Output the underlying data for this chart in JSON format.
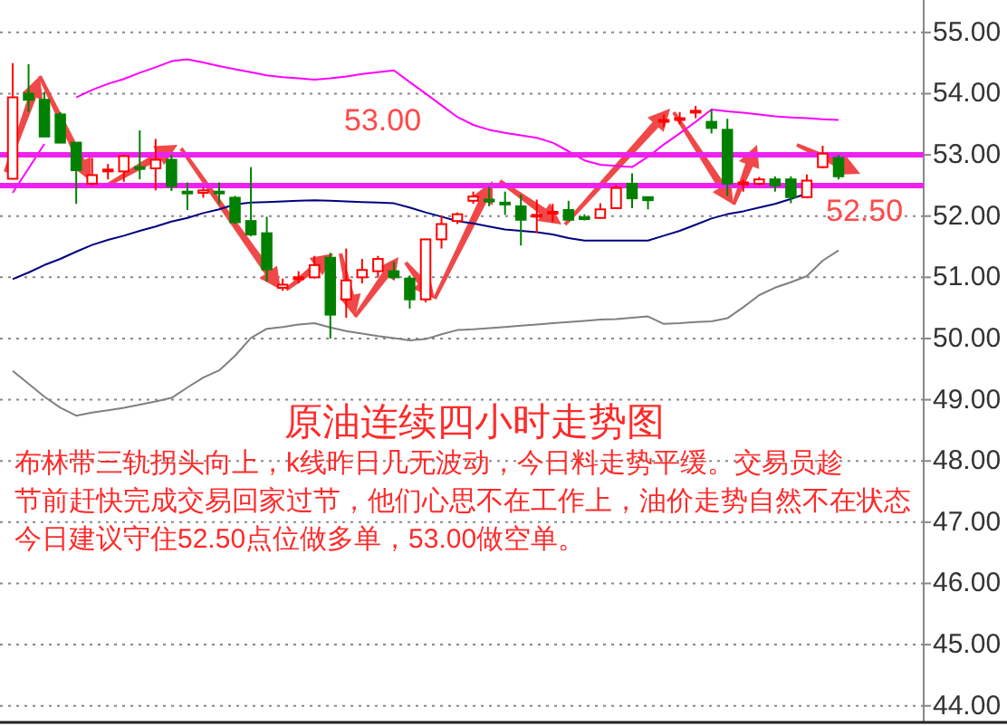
{
  "chart_data": {
    "type": "candlestick",
    "title": "原油连续四小时走势图",
    "annotations": [
      "布林带三轨拐头向上，k线昨日几无波动，今日料走势平缓。交易员趁节前赶快完成交易回家过节，他们心思不在工作上，油价走势自然不在状态",
      "今日建议守住52.50点位做多单，53.00做空单。"
    ],
    "categories": [
      null,
      null,
      null,
      null,
      null,
      null,
      null,
      null,
      null,
      null,
      null,
      null,
      null,
      null,
      null,
      null,
      null,
      null,
      null,
      null,
      null,
      null,
      null,
      null,
      null,
      null,
      null,
      null,
      null,
      null,
      null,
      null,
      null,
      null,
      null,
      null,
      null,
      null,
      null,
      null,
      null,
      null,
      null,
      null,
      null,
      null,
      null,
      null,
      null,
      null,
      null,
      null,
      null
    ],
    "ohlc": [
      [
        52.61,
        54.5,
        52.6,
        53.94
      ],
      [
        54.0,
        54.48,
        53.7,
        53.9
      ],
      [
        53.9,
        54.03,
        53.3,
        53.3
      ],
      [
        53.66,
        53.7,
        53.2,
        53.2
      ],
      [
        53.2,
        53.2,
        52.2,
        52.75
      ],
      [
        52.53,
        52.95,
        52.5,
        52.67
      ],
      [
        52.74,
        52.85,
        52.6,
        52.76
      ],
      [
        52.73,
        53.0,
        52.56,
        52.98
      ],
      [
        52.8,
        53.4,
        52.6,
        52.78
      ],
      [
        52.78,
        53.26,
        52.42,
        52.92
      ],
      [
        52.92,
        53.0,
        52.41,
        52.49
      ],
      [
        52.4,
        52.55,
        52.1,
        52.38
      ],
      [
        52.38,
        52.46,
        52.3,
        52.42
      ],
      [
        52.4,
        52.55,
        52.2,
        52.38
      ],
      [
        52.3,
        52.33,
        51.87,
        51.9
      ],
      [
        51.92,
        52.8,
        51.67,
        51.7
      ],
      [
        51.72,
        51.99,
        50.93,
        51.13
      ],
      [
        50.83,
        50.98,
        50.78,
        50.88
      ],
      [
        50.98,
        51.1,
        50.9,
        51.0
      ],
      [
        51.0,
        51.35,
        50.98,
        51.2
      ],
      [
        51.32,
        51.4,
        50.0,
        50.39
      ],
      [
        50.64,
        51.47,
        50.34,
        50.95
      ],
      [
        51.0,
        51.3,
        50.9,
        51.12
      ],
      [
        51.1,
        51.35,
        51.0,
        51.3
      ],
      [
        51.1,
        51.25,
        50.97,
        51.0
      ],
      [
        50.98,
        51.03,
        50.49,
        50.64
      ],
      [
        50.64,
        51.62,
        50.59,
        51.62
      ],
      [
        51.62,
        52.01,
        51.47,
        51.87
      ],
      [
        51.92,
        52.06,
        51.87,
        52.03
      ],
      [
        52.25,
        52.4,
        52.2,
        52.32
      ],
      [
        52.27,
        52.48,
        52.16,
        52.26
      ],
      [
        52.22,
        52.4,
        52.02,
        52.2
      ],
      [
        52.16,
        52.35,
        51.52,
        51.94
      ],
      [
        52.0,
        52.27,
        51.73,
        52.02
      ],
      [
        52.05,
        52.2,
        51.9,
        52.07
      ],
      [
        52.1,
        52.25,
        51.92,
        51.94
      ],
      [
        51.98,
        52.03,
        51.93,
        51.97
      ],
      [
        51.97,
        52.21,
        51.96,
        52.11
      ],
      [
        52.13,
        52.51,
        52.13,
        52.46
      ],
      [
        52.53,
        52.7,
        52.13,
        52.29
      ],
      [
        52.31,
        52.31,
        52.11,
        52.26
      ],
      [
        53.55,
        53.66,
        53.45,
        53.57
      ],
      [
        53.58,
        53.7,
        53.5,
        53.6
      ],
      [
        53.7,
        53.8,
        53.6,
        53.72
      ],
      [
        53.54,
        53.74,
        53.35,
        53.44
      ],
      [
        53.41,
        53.59,
        52.33,
        52.53
      ],
      [
        52.52,
        52.6,
        52.4,
        52.55
      ],
      [
        52.53,
        52.64,
        52.5,
        52.6
      ],
      [
        52.6,
        52.65,
        52.4,
        52.5
      ],
      [
        52.6,
        52.65,
        52.21,
        52.31
      ],
      [
        52.31,
        52.68,
        52.29,
        52.58
      ],
      [
        52.8,
        53.15,
        52.78,
        53.02
      ],
      [
        52.95,
        53.0,
        52.6,
        52.65
      ]
    ],
    "colors": [
      "#ff0000",
      "#008000",
      "#008000",
      "#008000",
      "#008000",
      "#ff0000",
      "#ff0000",
      "#ff0000",
      "#008000",
      "#ff0000",
      "#008000",
      "#008000",
      "#ff0000",
      "#008000",
      "#008000",
      "#008000",
      "#008000",
      "#ff0000",
      "#ff0000",
      "#ff0000",
      "#008000",
      "#ff0000",
      "#ff0000",
      "#ff0000",
      "#008000",
      "#008000",
      "#ff0000",
      "#ff0000",
      "#ff0000",
      "#ff0000",
      "#008000",
      "#008000",
      "#008000",
      "#ff0000",
      "#ff0000",
      "#008000",
      "#008000",
      "#ff0000",
      "#ff0000",
      "#008000",
      "#008000",
      "#ff0000",
      "#ff0000",
      "#ff0000",
      "#008000",
      "#008000",
      "#ff0000",
      "#ff0000",
      "#008000",
      "#008000",
      "#ff0000",
      "#ff0000",
      "#008000"
    ],
    "series": [
      {
        "type": "line",
        "color": "#ff00ff",
        "values": [
          52.38,
          52.78,
          53.18,
          null,
          53.94,
          54.06,
          54.16,
          54.24,
          54.34,
          54.43,
          54.53,
          54.56,
          54.51,
          54.45,
          54.4,
          54.35,
          54.3,
          54.27,
          54.25,
          54.23,
          54.25,
          54.28,
          54.32,
          54.35,
          54.38,
          54.19,
          54.0,
          53.81,
          53.62,
          53.49,
          53.41,
          53.36,
          53.32,
          53.28,
          53.2,
          53.06,
          52.91,
          52.84,
          52.82,
          52.8,
          52.97,
          53.17,
          53.35,
          53.54,
          53.74,
          53.71,
          53.69,
          53.66,
          53.63,
          53.61,
          53.6,
          53.58,
          53.57
        ]
      },
      {
        "type": "line",
        "color": "#000080",
        "values": [
          50.97,
          51.08,
          51.2,
          51.3,
          51.42,
          51.53,
          51.61,
          51.68,
          51.76,
          51.83,
          51.91,
          51.97,
          52.05,
          52.11,
          52.19,
          52.22,
          52.23,
          52.24,
          52.25,
          52.26,
          52.25,
          52.24,
          52.23,
          52.22,
          52.21,
          52.14,
          52.06,
          51.99,
          51.92,
          51.88,
          51.83,
          51.78,
          51.76,
          51.74,
          51.7,
          51.64,
          51.6,
          51.6,
          51.6,
          51.6,
          51.6,
          51.68,
          51.76,
          51.86,
          51.96,
          52.03,
          52.08,
          52.14,
          52.2,
          52.28,
          52.37,
          null,
          null
        ]
      },
      {
        "type": "line",
        "color": "#808080",
        "values": [
          49.47,
          49.26,
          49.05,
          48.87,
          48.74,
          48.79,
          48.83,
          48.87,
          48.92,
          48.97,
          49.03,
          49.2,
          49.36,
          49.48,
          49.72,
          50.01,
          50.16,
          50.19,
          50.23,
          50.25,
          50.18,
          50.12,
          50.08,
          50.04,
          50.01,
          49.97,
          49.99,
          50.07,
          50.14,
          50.15,
          50.17,
          50.19,
          50.21,
          50.23,
          50.25,
          50.27,
          50.29,
          50.31,
          50.32,
          50.34,
          50.36,
          50.24,
          50.25,
          50.27,
          50.28,
          50.33,
          50.51,
          50.71,
          50.83,
          50.92,
          51.02,
          51.27,
          51.44
        ]
      }
    ],
    "ref_lines": [
      {
        "axis": "y",
        "value": 53.0,
        "label": "53.00",
        "color": "#ee22ee"
      },
      {
        "axis": "y",
        "value": 52.5,
        "label": "52.50",
        "color": "#ee22ee"
      }
    ],
    "ylim": [
      43.73,
      55.53
    ],
    "yticks": [
      {
        "value": 44,
        "label": "44.00"
      },
      {
        "value": 45,
        "label": "45.00"
      },
      {
        "value": 46,
        "label": "46.00"
      },
      {
        "value": 47,
        "label": "47.00"
      },
      {
        "value": 48,
        "label": "48.00"
      },
      {
        "value": 49,
        "label": "49.00"
      },
      {
        "value": 50,
        "label": "50.00"
      },
      {
        "value": 51,
        "label": "51.00"
      },
      {
        "value": 52,
        "label": "52.00"
      },
      {
        "value": 53,
        "label": "53.00"
      },
      {
        "value": 54,
        "label": "54.00"
      },
      {
        "value": 55,
        "label": "55.00"
      }
    ],
    "grid": "y",
    "tick_labels": "y"
  }
}
